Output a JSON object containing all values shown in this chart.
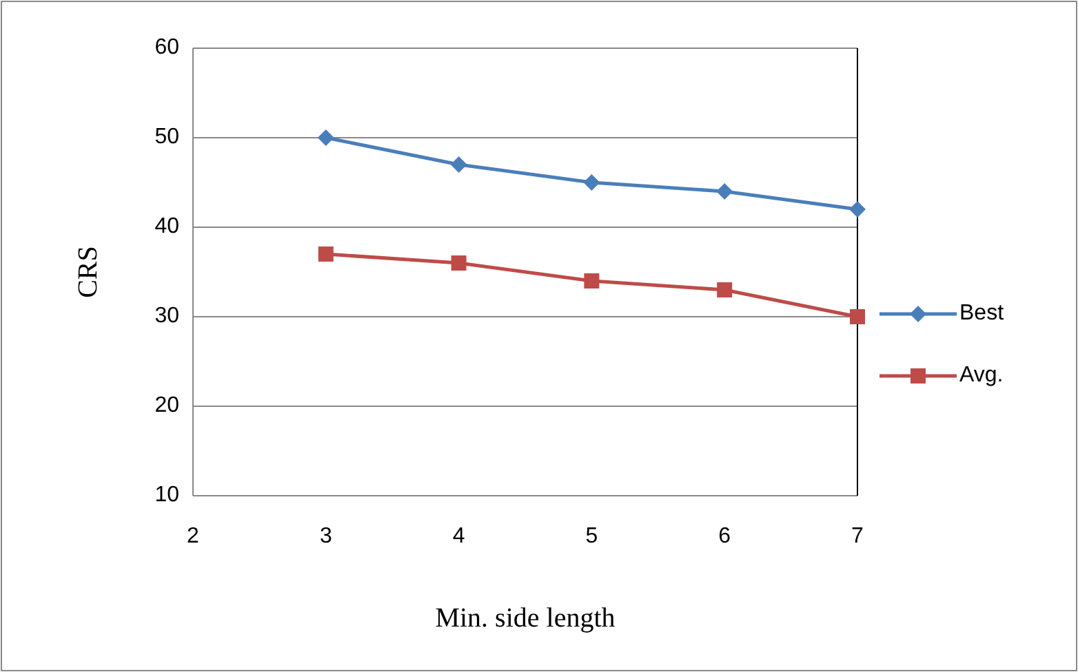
{
  "chart_data": {
    "type": "line",
    "xlabel": "Min. side length",
    "ylabel": "CRS",
    "x": [
      3,
      4,
      5,
      6,
      7
    ],
    "xlim": [
      2,
      7
    ],
    "xticks": [
      2,
      3,
      4,
      5,
      6,
      7
    ],
    "ylim": [
      10,
      60
    ],
    "yticks": [
      10,
      20,
      30,
      40,
      50,
      60
    ],
    "grid": "y",
    "legend": "right",
    "series": [
      {
        "name": "Best",
        "color": "#4a7ebb",
        "marker": "diamond",
        "values": [
          50,
          47,
          45,
          44,
          42
        ]
      },
      {
        "name": "Avg.",
        "color": "#be4b48",
        "marker": "square",
        "values": [
          37,
          36,
          34,
          33,
          30
        ]
      }
    ]
  }
}
